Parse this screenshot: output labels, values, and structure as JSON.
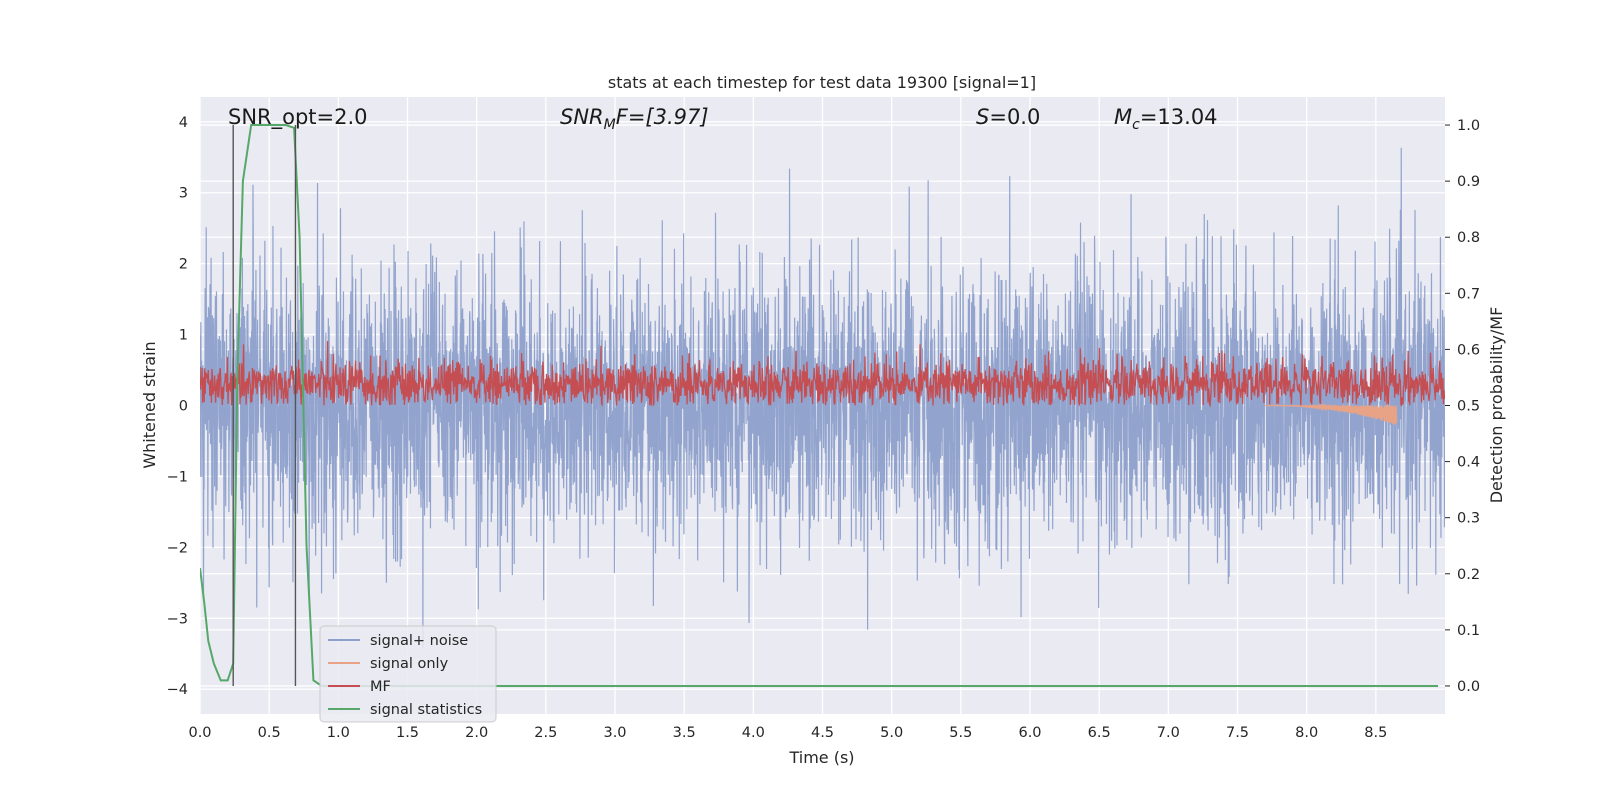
{
  "chart_data": {
    "type": "line",
    "title": "stats at each timestep for test data 19300 [signal=1]",
    "xlabel": "Time (s)",
    "ylabel_left": "Whitened strain",
    "ylabel_right": "Detection probability/MF",
    "xlim": [
      0.0,
      9.0
    ],
    "ylim_left": [
      -4.35,
      4.35
    ],
    "ylim_right": [
      -0.05,
      1.05
    ],
    "xticks": [
      "0.0",
      "0.5",
      "1.0",
      "1.5",
      "2.0",
      "2.5",
      "3.0",
      "3.5",
      "4.0",
      "4.5",
      "5.0",
      "5.5",
      "6.0",
      "6.5",
      "7.0",
      "7.5",
      "8.0",
      "8.5"
    ],
    "yticks_left": [
      "4",
      "3",
      "2",
      "1",
      "0",
      "−1",
      "−2",
      "−3",
      "−4"
    ],
    "yticks_right": [
      "1.0",
      "0.9",
      "0.8",
      "0.7",
      "0.6",
      "0.5",
      "0.4",
      "0.3",
      "0.2",
      "0.1",
      "0.0"
    ],
    "grid": true,
    "annotations": {
      "snr_opt": "SNR_opt=2.0",
      "snr_mf_main": "SNR",
      "snr_mf_sub": "M",
      "snr_mf_tail": "F=[3.97]",
      "s_main": "S",
      "s_tail": "=0.0",
      "mc_main": "M",
      "mc_sub": "c",
      "mc_tail": "=13.04"
    },
    "vertical_lines_x": [
      0.24,
      0.69
    ],
    "colors": {
      "plot_bg": "#eaeaf2",
      "grid": "#ffffff",
      "noise": "#8da0cb",
      "signal": "#e8a387",
      "mf": "#c44e52",
      "stat": "#55a868",
      "vline": "#555555"
    },
    "series": [
      {
        "name": "signal+ noise",
        "axis": "left",
        "sample_rate_hz": 512,
        "noise_std": 0.95,
        "min": -3.95,
        "max": 3.78
      },
      {
        "name": "signal only",
        "axis": "left",
        "chirp_start_s": 7.7,
        "chirp_end_s": 8.65,
        "min": -0.28,
        "max": 0.0
      },
      {
        "name": "MF",
        "axis": "left",
        "mean": 0.3,
        "range": [
          0.0,
          0.92
        ]
      },
      {
        "name": "signal statistics",
        "axis": "right",
        "x": [
          0.0,
          0.03,
          0.06,
          0.1,
          0.15,
          0.2,
          0.24,
          0.27,
          0.31,
          0.37,
          0.45,
          0.55,
          0.62,
          0.68,
          0.72,
          0.77,
          0.82,
          0.88,
          0.95,
          1.5,
          2.5,
          3.5,
          4.5,
          5.5,
          6.5,
          7.5,
          8.5,
          8.95
        ],
        "y": [
          0.21,
          0.15,
          0.08,
          0.04,
          0.01,
          0.01,
          0.04,
          0.55,
          0.9,
          1.0,
          1.0,
          1.0,
          1.0,
          0.995,
          0.8,
          0.25,
          0.01,
          0.0,
          0.0,
          0.0,
          0.0,
          0.0,
          0.0,
          0.0,
          0.0,
          0.0,
          0.0,
          0.0
        ]
      }
    ],
    "legend": {
      "position": "lower-left",
      "entries": [
        "signal+ noise",
        "signal only",
        "MF",
        "signal statistics"
      ]
    }
  }
}
